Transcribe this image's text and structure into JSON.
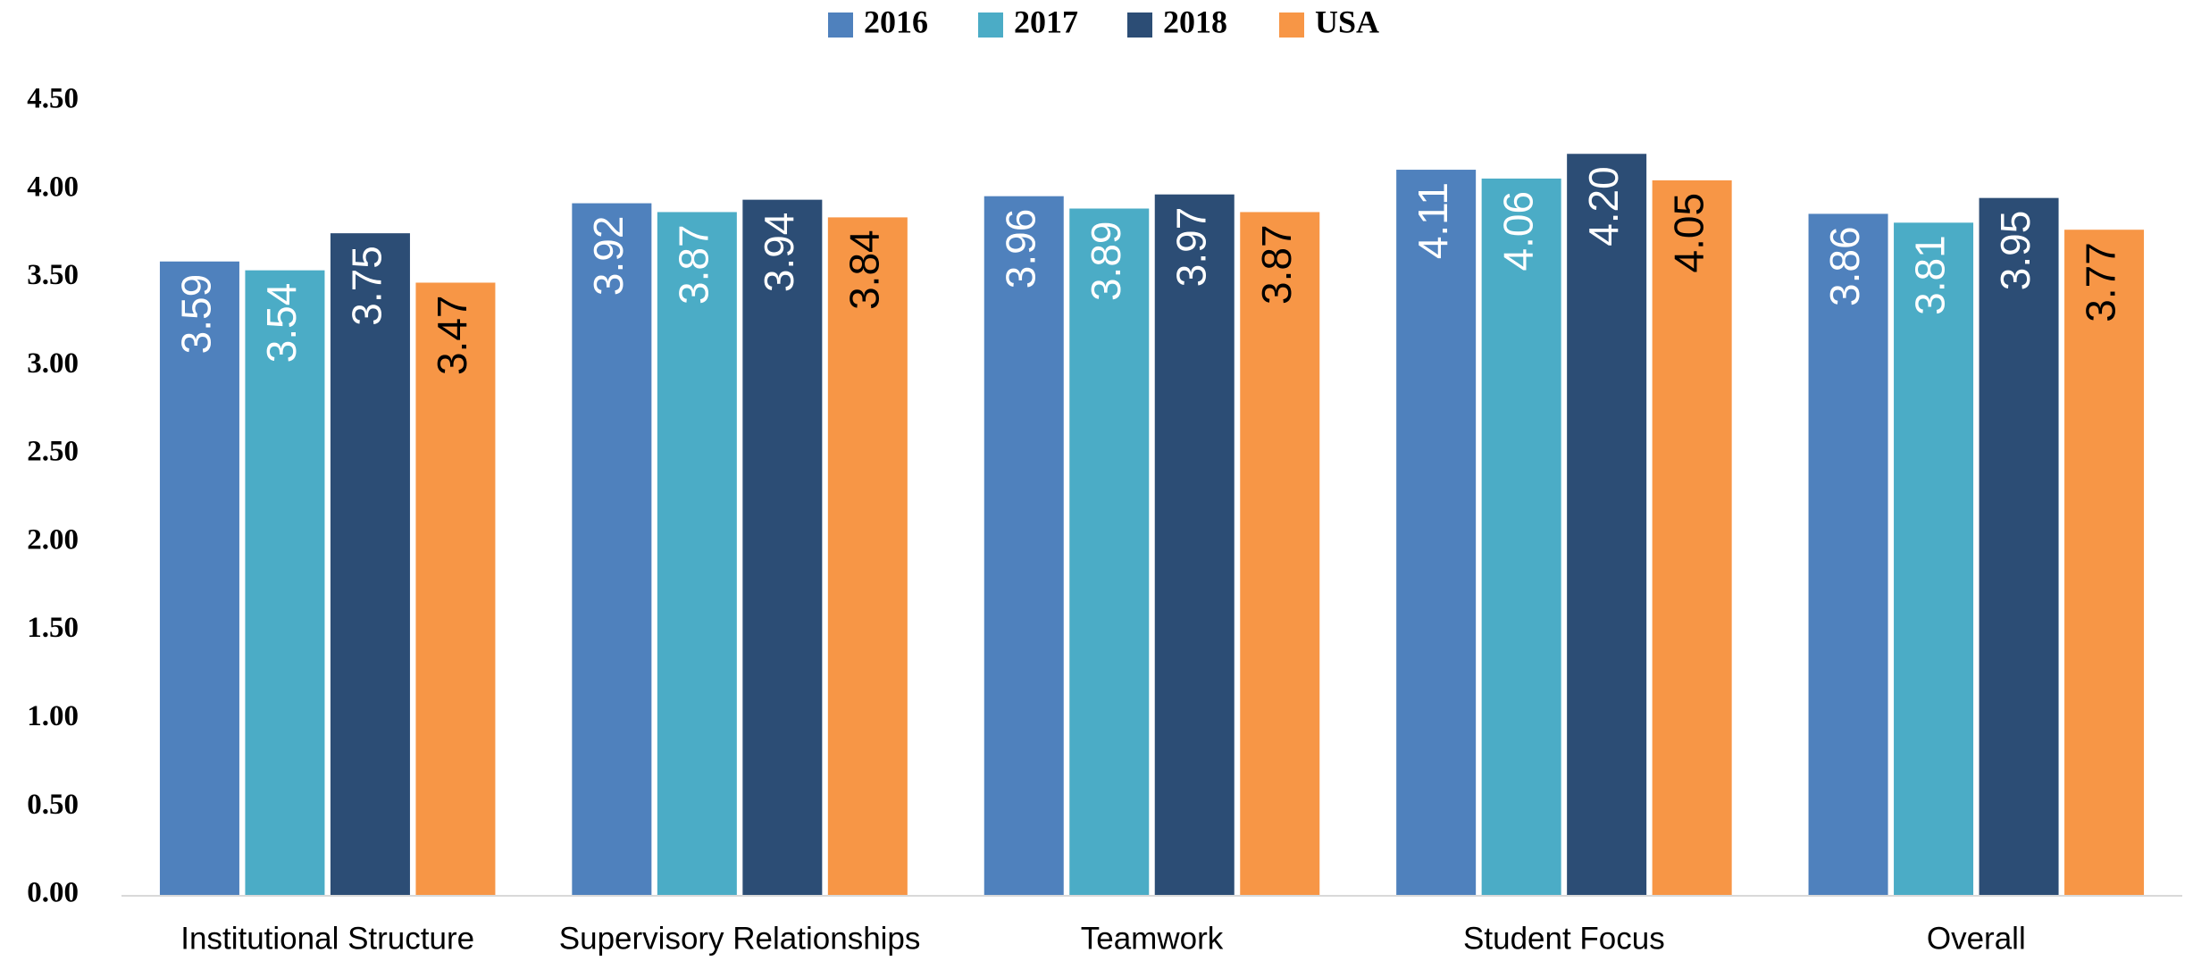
{
  "chart_data": {
    "type": "bar",
    "categories": [
      "Institutional Structure",
      "Supervisory Relationships",
      "Teamwork",
      "Student Focus",
      "Overall"
    ],
    "series": [
      {
        "name": "2016",
        "color": "#4f81bd",
        "values": [
          3.59,
          3.92,
          3.96,
          4.11,
          3.86
        ],
        "value_labels": [
          "3.59",
          "3.92",
          "3.96",
          "4.11",
          "3.86"
        ]
      },
      {
        "name": "2017",
        "color": "#4bacc6",
        "values": [
          3.54,
          3.87,
          3.89,
          4.06,
          3.81
        ],
        "value_labels": [
          "3.54",
          "3.87",
          "3.89",
          "4.06",
          "3.81"
        ]
      },
      {
        "name": "2018",
        "color": "#2c4d75",
        "values": [
          3.75,
          3.94,
          3.97,
          4.2,
          3.95
        ],
        "value_labels": [
          "3.75",
          "3.94",
          "3.97",
          "4.20",
          "3.95"
        ]
      },
      {
        "name": "USA",
        "color": "#f79646",
        "values": [
          3.47,
          3.84,
          3.87,
          4.05,
          3.77
        ],
        "value_labels": [
          "3.47",
          "3.84",
          "3.87",
          "4.05",
          "3.77"
        ]
      }
    ],
    "ylim": [
      0,
      4.5
    ],
    "yticks": [
      {
        "value": 0,
        "label": "0.00"
      },
      {
        "value": 0.5,
        "label": "0.50"
      },
      {
        "value": 1,
        "label": "1.00"
      },
      {
        "value": 1.5,
        "label": "1.50"
      },
      {
        "value": 2,
        "label": "2.00"
      },
      {
        "value": 2.5,
        "label": "2.50"
      },
      {
        "value": 3,
        "label": "3.00"
      },
      {
        "value": 3.5,
        "label": "3.50"
      },
      {
        "value": 4,
        "label": "4.00"
      },
      {
        "value": 4.5,
        "label": "4.50"
      }
    ],
    "legend": "top"
  }
}
